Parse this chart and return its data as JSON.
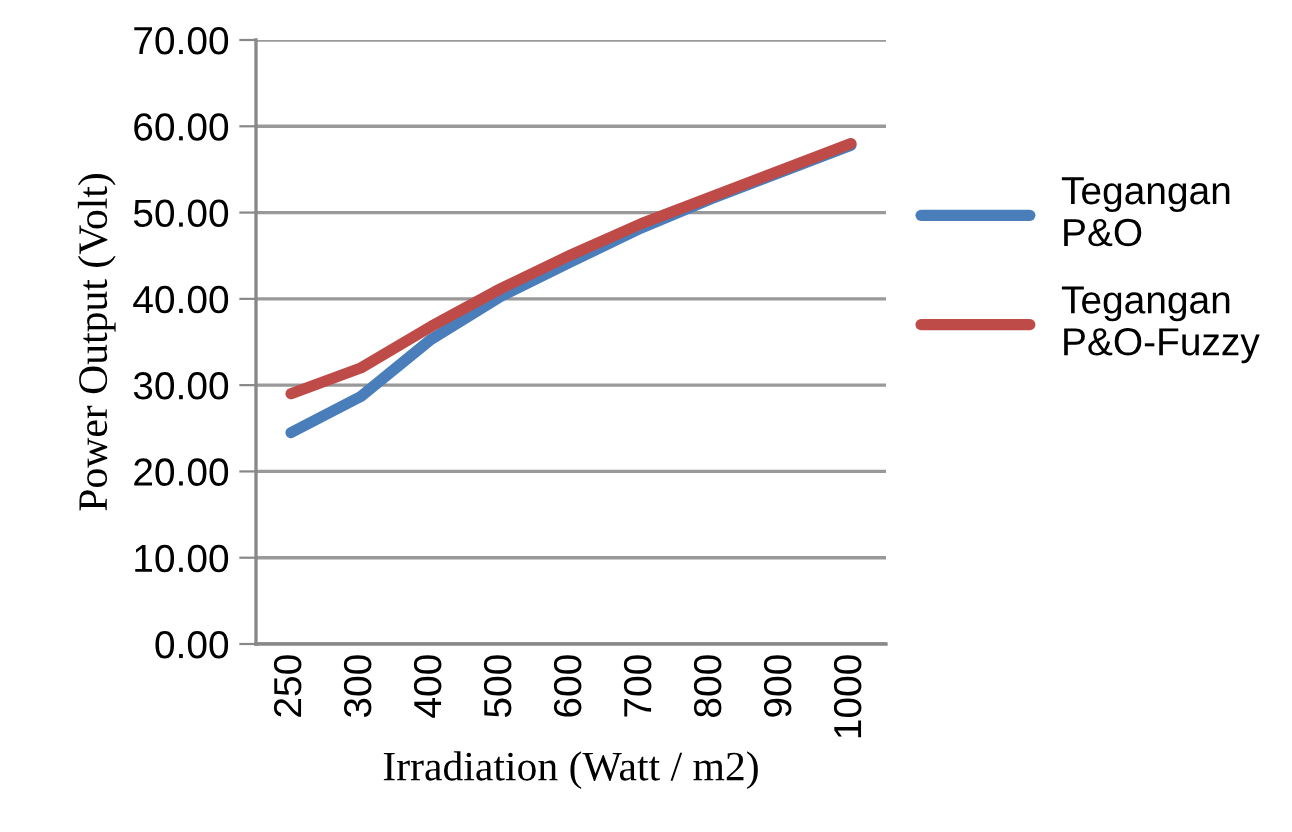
{
  "chart_data": {
    "type": "line",
    "categories": [
      "250",
      "300",
      "400",
      "500",
      "600",
      "700",
      "800",
      "900",
      "1000"
    ],
    "series": [
      {
        "name": "Tegangan\nP&O",
        "color": "#4a7ebb",
        "values": [
          24.5,
          28.7,
          35.3,
          40.3,
          44.3,
          48.2,
          51.6,
          54.7,
          57.8
        ]
      },
      {
        "name": "Tegangan\nP&O-Fuzzy",
        "color": "#be4b48",
        "values": [
          29.0,
          32.0,
          36.8,
          41.2,
          45.1,
          48.7,
          51.8,
          54.9,
          58.0
        ]
      }
    ],
    "xlabel": "Irradiation (Watt / m2)",
    "ylabel": "Power Output (Volt)",
    "ylim": [
      0,
      70
    ],
    "yticks": [
      {
        "value": 0,
        "label": "0.00"
      },
      {
        "value": 10,
        "label": "10.00"
      },
      {
        "value": 20,
        "label": "20.00"
      },
      {
        "value": 30,
        "label": "30.00"
      },
      {
        "value": 40,
        "label": "40.00"
      },
      {
        "value": 50,
        "label": "50.00"
      },
      {
        "value": 60,
        "label": "60.00"
      },
      {
        "value": 70,
        "label": "70.00"
      }
    ],
    "grid": "y",
    "legend": "right",
    "marker": "none",
    "line_style": "solid"
  }
}
